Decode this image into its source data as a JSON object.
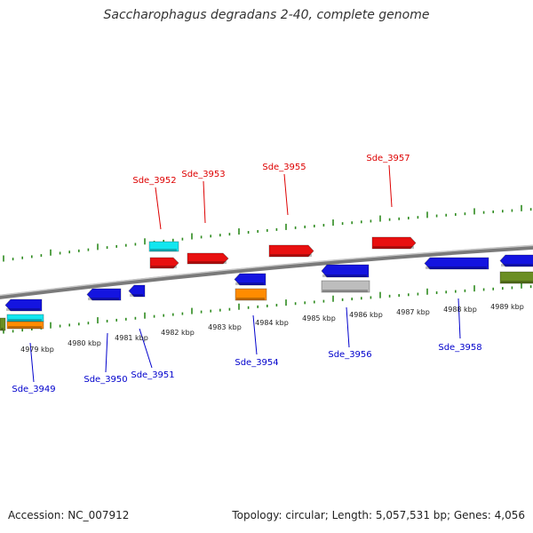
{
  "title": "Saccharophagus degradans 2-40, complete genome",
  "footer": {
    "accession": "Accession: NC_007912",
    "summary": "Topology: circular; Length: 5,057,531 bp; Genes: 4,056"
  },
  "colors": {
    "forward_label": "#dd0000",
    "reverse_label": "#0000cc",
    "tick": "#2e8b1f",
    "backbone": "#8c8c8c",
    "red": "#e81010",
    "blue": "#1414e0",
    "cyan": "#12e6ef",
    "orange": "#ff8c00",
    "gray": "#bdbdbd",
    "olive": "#6b8e23"
  },
  "forward_labels": [
    "Sde_3952",
    "Sde_3953",
    "Sde_3955",
    "Sde_3957"
  ],
  "reverse_labels": [
    "Sde_3949",
    "Sde_3950",
    "Sde_3951",
    "Sde_3954",
    "Sde_3956",
    "Sde_3958"
  ],
  "kbp_labels": [
    "4979 kbp",
    "4980 kbp",
    "4981 kbp",
    "4982 kbp",
    "4983 kbp",
    "4984 kbp",
    "4985 kbp",
    "4986 kbp",
    "4987 kbp",
    "4988 kbp",
    "4989 kbp"
  ]
}
